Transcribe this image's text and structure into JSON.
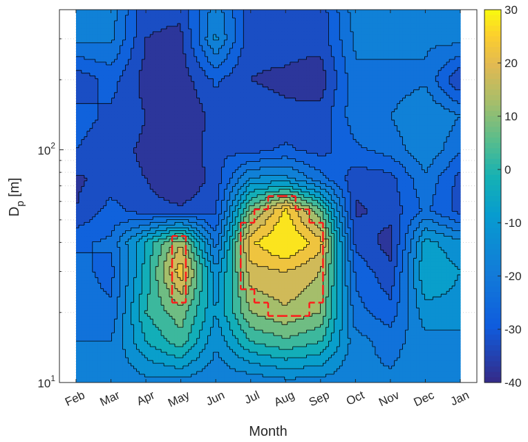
{
  "chart_data": {
    "type": "heatmap",
    "subtype": "filled-contour",
    "xlabel": "Month",
    "ylabel_main": "D",
    "ylabel_sub": "p",
    "ylabel_unit": " [m]",
    "x": [
      "Feb",
      "Mar",
      "Apr",
      "May",
      "Jun",
      "Jul",
      "Aug",
      "Sep",
      "Oct",
      "Nov",
      "Dec",
      "Jan"
    ],
    "y_scale": "log",
    "ylim": [
      10,
      400
    ],
    "y_ticks": [
      {
        "base": "10",
        "exp": "1",
        "value": 10
      },
      {
        "base": "10",
        "exp": "2",
        "value": 100
      }
    ],
    "y_rows": [
      10,
      15,
      20,
      30,
      40,
      55,
      75,
      100,
      140,
      200,
      300,
      400
    ],
    "z": [
      [
        -17,
        -19,
        -17,
        -17,
        -19,
        -19,
        -17,
        -17,
        -19,
        -19,
        -17,
        -17
      ],
      [
        -20,
        -20,
        -5,
        3,
        -14,
        0,
        4,
        0,
        -18,
        -22,
        -17,
        -17
      ],
      [
        -22,
        -24,
        0,
        8,
        -10,
        10,
        14,
        10,
        -23,
        -28,
        -12,
        -12
      ],
      [
        -23,
        -27,
        -3,
        24,
        -14,
        18,
        20,
        15,
        -26,
        -34,
        -5,
        -10
      ],
      [
        -26,
        -24,
        -4,
        14,
        -23,
        24,
        32,
        22,
        -32,
        -37,
        -8,
        -14
      ],
      [
        -35,
        -28,
        -33,
        -34,
        -31,
        8,
        26,
        6,
        -36,
        -33,
        -24,
        -32
      ],
      [
        -36,
        -33,
        -35,
        -40,
        -33,
        -14,
        -13,
        -23,
        -33,
        -32,
        -21,
        -32
      ],
      [
        -30,
        -33,
        -36,
        -41,
        -31,
        -32,
        -29,
        -32,
        -26,
        -23,
        -16,
        -24
      ],
      [
        -28,
        -31,
        -35,
        -40,
        -33,
        -33,
        -34,
        -33,
        -22,
        -20,
        -15,
        -20
      ],
      [
        -34,
        -28,
        -37,
        -38,
        -29,
        -35,
        -36,
        -38,
        -21,
        -23,
        -21,
        -35
      ],
      [
        -18,
        -19,
        -35,
        -36,
        -14,
        -34,
        -33,
        -33,
        -19,
        -17,
        -19,
        -18
      ],
      [
        -17,
        -17,
        -34,
        -34,
        -17,
        -33,
        -33,
        -33,
        -17,
        -17,
        -17,
        -17
      ]
    ],
    "contour_levels": [
      -35,
      -30,
      -25,
      -20,
      -15,
      -10,
      -5,
      0,
      5,
      10,
      15,
      20,
      25
    ],
    "colorbar": {
      "min": -40,
      "max": 30,
      "ticks": [
        "30",
        "20",
        "10",
        "0",
        "-10",
        "-20",
        "-30",
        "-40"
      ],
      "tick_values": [
        30,
        20,
        10,
        0,
        -10,
        -20,
        -30,
        -40
      ],
      "colormap": "parula"
    },
    "overlay": {
      "style": "dashed",
      "color": "#ff1a1a",
      "threshold": 12
    },
    "grid": true,
    "colors": {
      "axes_bg": "#ffffff",
      "text": "#262626",
      "grid": "#d0d0d0",
      "contour_line": "#000000"
    }
  }
}
